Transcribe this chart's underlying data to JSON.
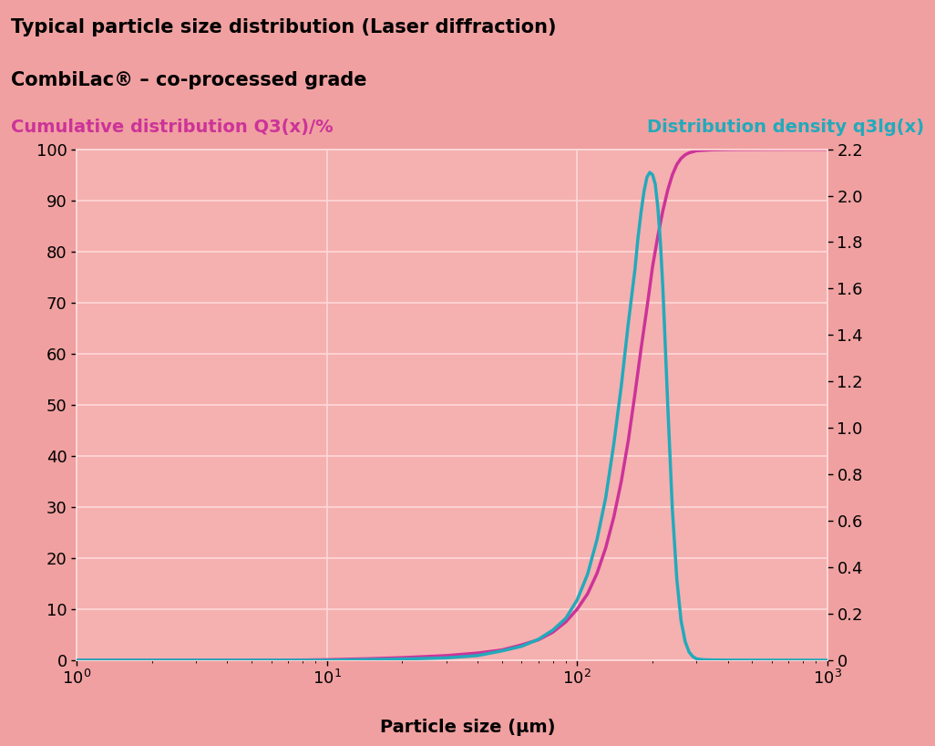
{
  "title1": "Typical particle size distribution (Laser diffraction)",
  "title2": "CombiLac® – co-processed grade",
  "ylabel_left": "Cumulative distribution Q3(x)/%",
  "ylabel_right": "Distribution density q3lg(x)",
  "xlabel": "Particle size (µm)",
  "bg_dark_pink": "#f0a0a0",
  "bg_light_pink": "#fce8e8",
  "bg_plot": "#f5b0b0",
  "grid_color": "#ffd8d8",
  "cumulative_color": "#cc3399",
  "density_color": "#22aabb",
  "title1_fontsize": 15,
  "title2_fontsize": 15,
  "axis_label_fontsize": 14,
  "tick_fontsize": 13,
  "ylim_left": [
    0,
    100
  ],
  "ylim_right": [
    0,
    2.2
  ],
  "xlim": [
    1,
    1000
  ],
  "cumulative_x": [
    1,
    2,
    3,
    5,
    7,
    10,
    15,
    20,
    30,
    40,
    50,
    60,
    70,
    80,
    90,
    100,
    110,
    120,
    130,
    140,
    150,
    160,
    170,
    180,
    190,
    200,
    210,
    220,
    230,
    240,
    250,
    260,
    270,
    280,
    290,
    300,
    320,
    350,
    400,
    450,
    500,
    600,
    700,
    800,
    1000
  ],
  "cumulative_y": [
    0,
    0,
    0,
    0,
    0,
    0.1,
    0.3,
    0.5,
    0.9,
    1.4,
    2.0,
    3.0,
    4.0,
    5.5,
    7.5,
    10,
    13,
    17,
    22,
    28,
    35,
    43,
    52,
    61,
    69,
    77,
    83,
    88,
    92,
    95,
    97,
    98.2,
    98.9,
    99.3,
    99.5,
    99.7,
    99.8,
    99.9,
    99.95,
    99.97,
    99.98,
    99.99,
    100,
    100,
    100
  ],
  "density_x": [
    1,
    5,
    10,
    20,
    30,
    40,
    50,
    60,
    70,
    80,
    90,
    100,
    110,
    120,
    130,
    140,
    150,
    160,
    170,
    175,
    180,
    185,
    190,
    195,
    200,
    205,
    210,
    215,
    220,
    230,
    240,
    250,
    260,
    270,
    280,
    290,
    300,
    320,
    350,
    400,
    500,
    600,
    700,
    800,
    1000
  ],
  "density_y": [
    0,
    0,
    0,
    0.005,
    0.01,
    0.02,
    0.04,
    0.06,
    0.09,
    0.13,
    0.18,
    0.26,
    0.37,
    0.52,
    0.7,
    0.93,
    1.18,
    1.45,
    1.68,
    1.82,
    1.93,
    2.02,
    2.08,
    2.1,
    2.09,
    2.05,
    1.95,
    1.8,
    1.6,
    1.1,
    0.65,
    0.35,
    0.17,
    0.08,
    0.035,
    0.015,
    0.006,
    0.002,
    0.001,
    0.0005,
    0.0002,
    0.0001,
    5e-05,
    0,
    0
  ]
}
